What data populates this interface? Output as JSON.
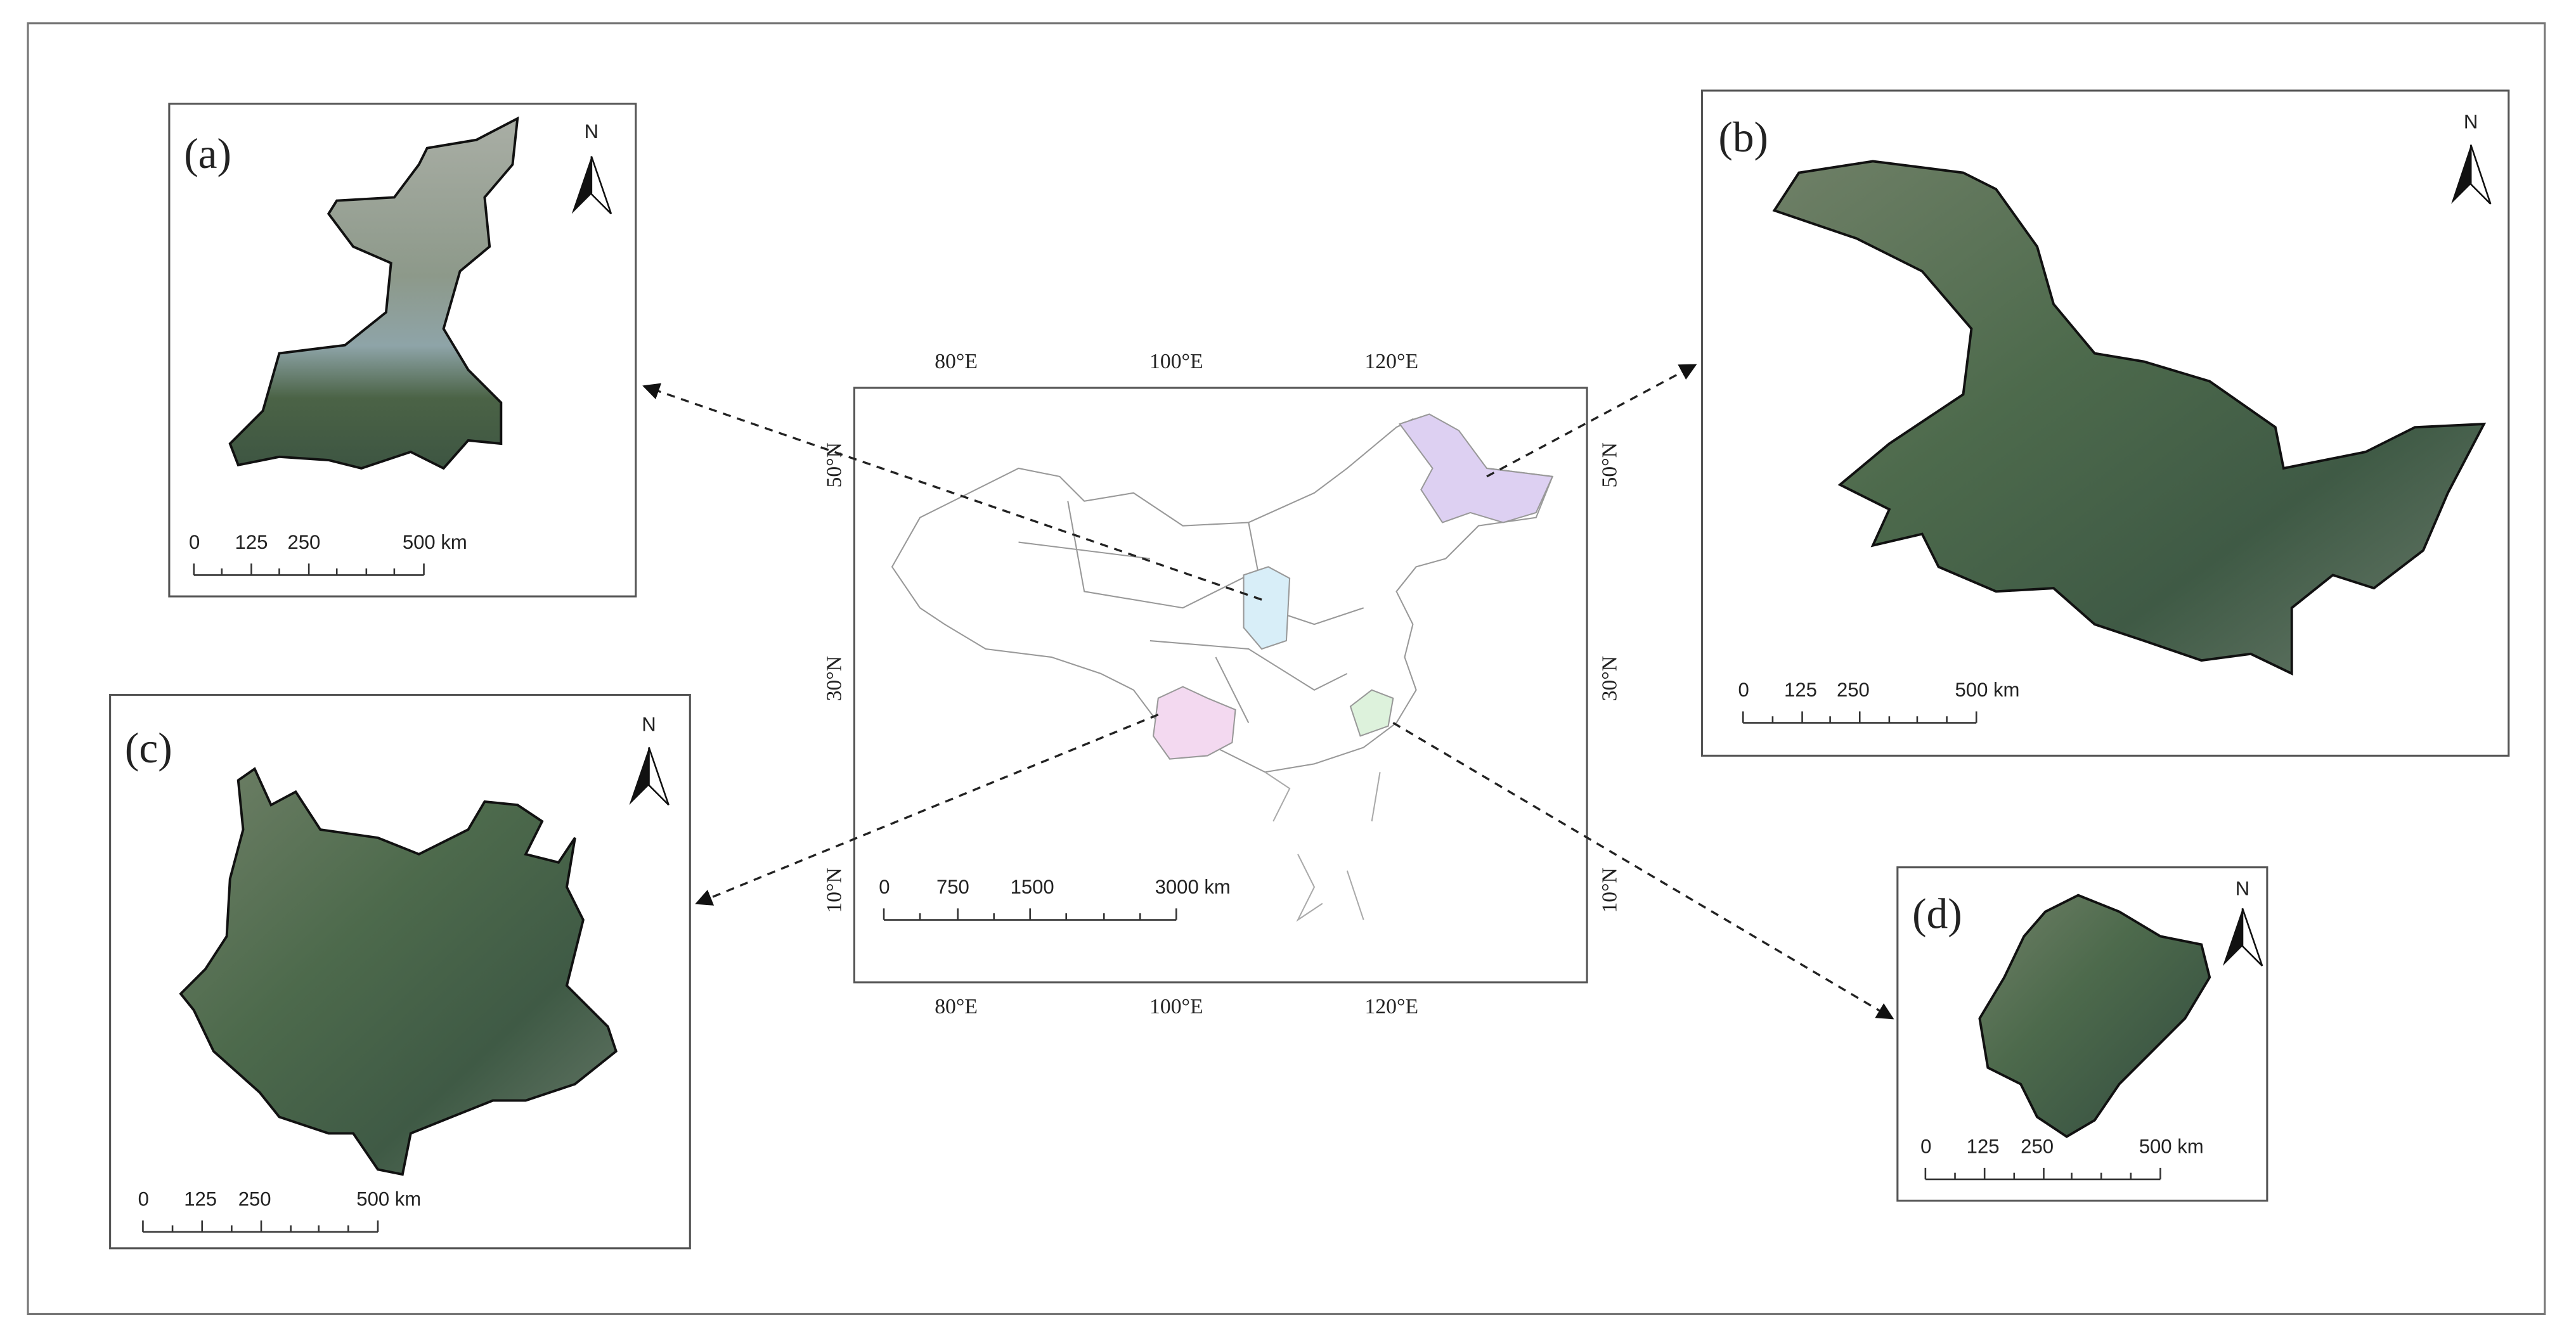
{
  "main_map": {
    "top_lon_labels": [
      "80°E",
      "100°E",
      "120°E"
    ],
    "bottom_lon_labels": [
      "80°E",
      "100°E",
      "120°E"
    ],
    "left_lat_labels": [
      "50°N",
      "30°N",
      "10°N"
    ],
    "right_lat_labels": [
      "50°N",
      "30°N",
      "10°N"
    ],
    "scale_labels": [
      "0",
      "750",
      "1500",
      "3000 km"
    ]
  },
  "insets": [
    {
      "label": "(a)",
      "north": "N",
      "scale_labels": [
        "0",
        "125",
        "250",
        "500 km"
      ]
    },
    {
      "label": "(b)",
      "north": "N",
      "scale_labels": [
        "0",
        "125",
        "250",
        "500 km"
      ]
    },
    {
      "label": "(c)",
      "north": "N",
      "scale_labels": [
        "0",
        "125",
        "250",
        "500 km"
      ]
    },
    {
      "label": "(d)",
      "north": "N",
      "scale_labels": [
        "0",
        "125",
        "250",
        "500 km"
      ]
    }
  ]
}
